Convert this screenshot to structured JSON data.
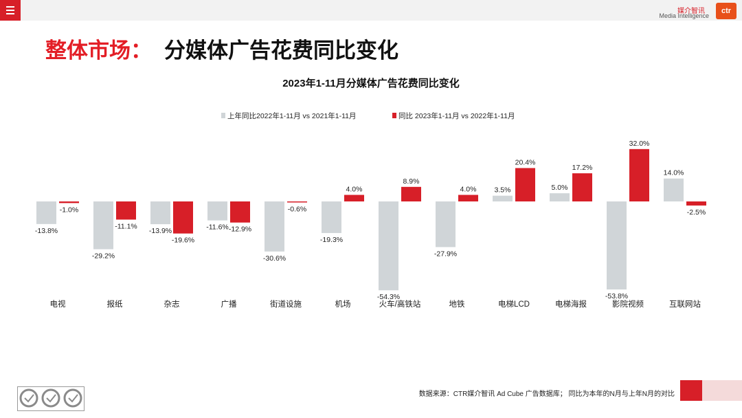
{
  "header": {
    "menu_icon": "hamburger-menu-icon",
    "logo_cn": "媒介智讯",
    "logo_en": "Media Intelligence",
    "logo_mark": "ctr"
  },
  "page": {
    "title_prefix": "整体市场：",
    "title_main": "分媒体广告花费同比变化"
  },
  "footer": {
    "source": "数据来源：CTR媒介智讯 Ad Cube 广告数据库；  同比为本年的N月与上年N月的对比",
    "cert_icon": "sgs-certification-icon"
  },
  "colors": {
    "accent": "#d71f28",
    "prior": "#d0d5d8",
    "current": "#d71f28"
  },
  "chart_data": {
    "type": "bar",
    "title": "2023年1-11月分媒体广告花费同比变化",
    "categories": [
      "电视",
      "报纸",
      "杂志",
      "广播",
      "街道设施",
      "机场",
      "火车/高铁站",
      "地铁",
      "电梯LCD",
      "电梯海报",
      "影院视频",
      "互联网站"
    ],
    "series": [
      {
        "name": "上年同比2022年1-11月  vs  2021年1-11月",
        "values": [
          -13.8,
          -29.2,
          -13.9,
          -11.6,
          -30.6,
          -19.3,
          -54.3,
          -27.9,
          3.5,
          5.0,
          -53.8,
          14.0
        ]
      },
      {
        "name": "同比 2023年1-11月  vs  2022年1-11月",
        "values": [
          -1.0,
          -11.1,
          -19.6,
          -12.9,
          -0.6,
          4.0,
          8.9,
          4.0,
          20.4,
          17.2,
          32.0,
          -2.5
        ]
      }
    ],
    "labels": [
      [
        "-13.8%",
        "-29.2%",
        "-13.9%",
        "-11.6%",
        "-30.6%",
        "-19.3%",
        "-54.3%",
        "-27.9%",
        "3.5%",
        "5.0%",
        "-53.8%",
        "14.0%"
      ],
      [
        "-1.0%",
        "-11.1%",
        "-19.6%",
        "-12.9%",
        "-0.6%",
        "4.0%",
        "8.9%",
        "4.0%",
        "20.4%",
        "17.2%",
        "32.0%",
        "-2.5%"
      ]
    ],
    "ylim": [
      -60,
      40
    ],
    "grid": false,
    "legend_position": "top-center",
    "unit": "%"
  }
}
